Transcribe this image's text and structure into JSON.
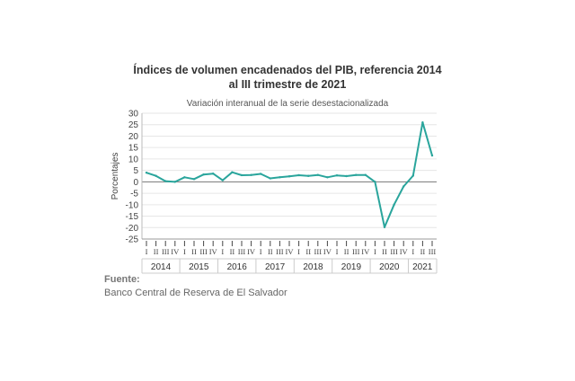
{
  "chart_data": {
    "type": "line",
    "title_line1": "Índices de volumen encadenados del PIB, referencia 2014",
    "title_line2": "al III trimestre de 2021",
    "subtitle": "Variación interanual de la serie desestacionalizada",
    "ylabel": "Porcentajes",
    "ylim": [
      -25,
      30
    ],
    "yticks": [
      30,
      25,
      20,
      15,
      10,
      5,
      0,
      -5,
      -10,
      -15,
      -20,
      -25
    ],
    "grid": true,
    "line_color": "#2aa59c",
    "quarters": [
      "I",
      "II",
      "III",
      "IV",
      "I",
      "II",
      "III",
      "IV",
      "I",
      "II",
      "III",
      "IV",
      "I",
      "II",
      "III",
      "IV",
      "I",
      "II",
      "III",
      "IV",
      "I",
      "II",
      "III",
      "IV",
      "I",
      "II",
      "III",
      "IV",
      "I",
      "II",
      "III"
    ],
    "years": [
      "2014",
      "2015",
      "2016",
      "2017",
      "2018",
      "2019",
      "2020",
      "2021"
    ],
    "series": [
      {
        "values": [
          4.0,
          2.6,
          0.3,
          0.0,
          2.0,
          1.2,
          3.2,
          3.6,
          0.7,
          4.2,
          2.9,
          3.0,
          3.5,
          1.5,
          2.0,
          2.4,
          2.9,
          2.6,
          3.0,
          2.0,
          2.8,
          2.5,
          3.0,
          3.0,
          0.0,
          -19.8,
          -10.0,
          -2.0,
          2.7,
          26.0,
          11.5
        ]
      }
    ]
  },
  "source": {
    "label": "Fuente:",
    "text": "Banco Central de Reserva de El Salvador"
  }
}
